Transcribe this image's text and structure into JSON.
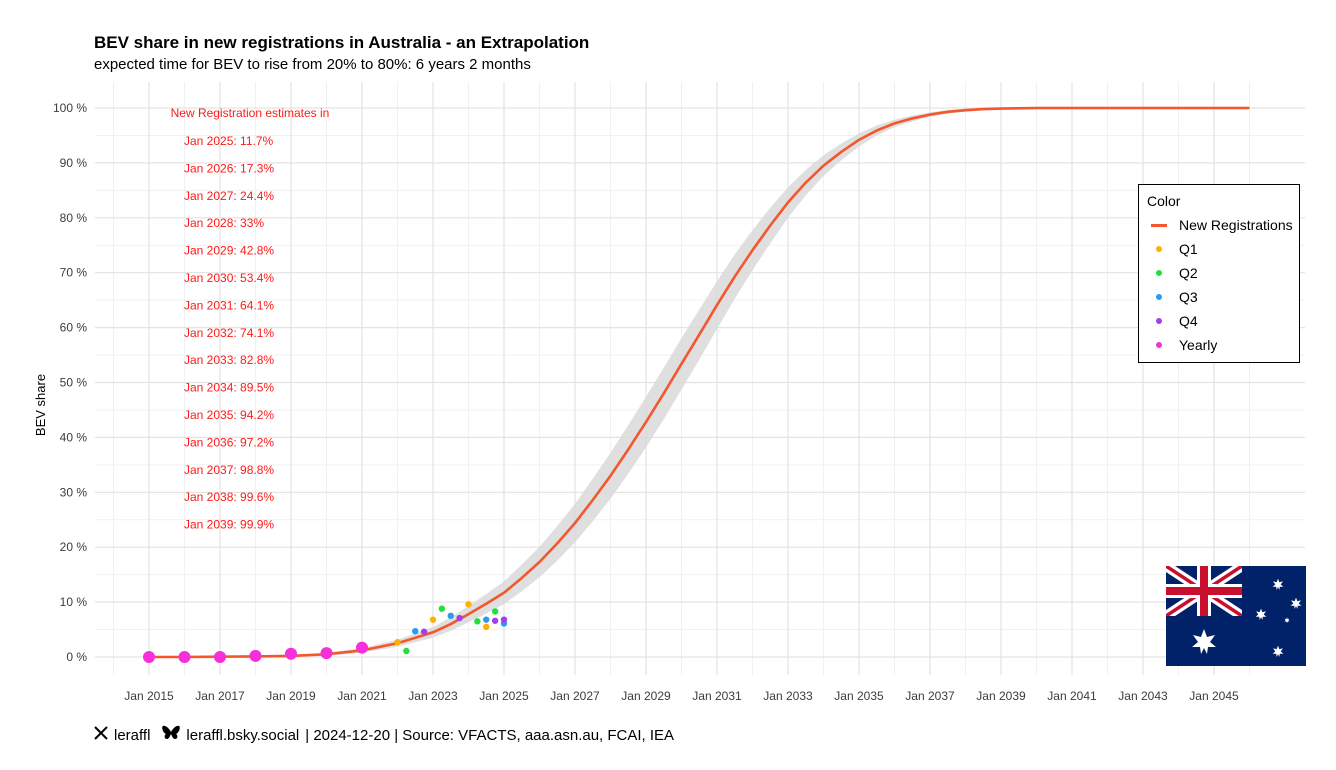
{
  "header": {
    "title": "BEV share in new registrations in Australia - an Extrapolation",
    "subtitle": "expected time for BEV to rise from 20% to 80%: 6 years 2 months"
  },
  "legend": {
    "title": "Color",
    "items": [
      {
        "label": "New Registrations",
        "color": "#F4562D",
        "kind": "line"
      },
      {
        "label": "Q1",
        "color": "#FFB000",
        "kind": "dot"
      },
      {
        "label": "Q2",
        "color": "#22E03A",
        "kind": "dot"
      },
      {
        "label": "Q3",
        "color": "#2B9AF2",
        "kind": "dot"
      },
      {
        "label": "Q4",
        "color": "#A33FEA",
        "kind": "dot"
      },
      {
        "label": "Yearly",
        "color": "#F52FD9",
        "kind": "dot"
      }
    ]
  },
  "annotation": {
    "heading": "New Registration estimates in",
    "color": "#FF1A1A",
    "lines": [
      "Jan 2025: 11.7%",
      "Jan 2026: 17.3%",
      "Jan 2027: 24.4%",
      "Jan 2028: 33%",
      "Jan 2029: 42.8%",
      "Jan 2030: 53.4%",
      "Jan 2031: 64.1%",
      "Jan 2032: 74.1%",
      "Jan 2033: 82.8%",
      "Jan 2034: 89.5%",
      "Jan 2035: 94.2%",
      "Jan 2036: 97.2%",
      "Jan 2037: 98.8%",
      "Jan 2038: 99.6%",
      "Jan 2039: 99.9%"
    ]
  },
  "footer": {
    "x_handle": "leraffl",
    "bsky_handle": "leraffl.bsky.social",
    "rest": "| 2024-12-20 | Source: VFACTS, aaa.asn.au, FCAI, IEA"
  },
  "chart_data": {
    "type": "line",
    "title": "BEV share in new registrations in Australia - an Extrapolation",
    "subtitle": "expected time for BEV to rise from 20% to 80%: 6 years 2 months",
    "xlabel": "",
    "ylabel": "BEV share",
    "xlim": [
      2014.65,
      2047.0
    ],
    "ylim": [
      -0.03,
      1.02
    ],
    "x_ticks": [
      2015,
      2017,
      2019,
      2021,
      2023,
      2025,
      2027,
      2029,
      2031,
      2033,
      2035,
      2037,
      2039,
      2041,
      2043,
      2045
    ],
    "x_tick_labels": [
      "Jan 2015",
      "Jan 2017",
      "Jan 2019",
      "Jan 2021",
      "Jan 2023",
      "Jan 2025",
      "Jan 2027",
      "Jan 2029",
      "Jan 2031",
      "Jan 2033",
      "Jan 2035",
      "Jan 2037",
      "Jan 2039",
      "Jan 2041",
      "Jan 2043",
      "Jan 2045"
    ],
    "y_ticks": [
      0,
      0.1,
      0.2,
      0.3,
      0.4,
      0.5,
      0.6,
      0.7,
      0.8,
      0.9,
      1.0
    ],
    "y_tick_labels": [
      "0 %",
      "10 %",
      "20 %",
      "30 %",
      "40 %",
      "50 %",
      "60 %",
      "70 %",
      "80 %",
      "90 %",
      "100 %"
    ],
    "grid": true,
    "legend_position": "right",
    "series": [
      {
        "name": "New Registrations",
        "kind": "line",
        "color": "#F4562D",
        "x": [
          2015.0,
          2016.0,
          2017.0,
          2018.0,
          2019.0,
          2020.0,
          2021.0,
          2022.0,
          2023.0,
          2023.5,
          2024.0,
          2024.5,
          2025.0,
          2025.5,
          2026.0,
          2026.5,
          2027.0,
          2027.5,
          2028.0,
          2028.5,
          2029.0,
          2029.5,
          2030.0,
          2030.5,
          2031.0,
          2031.5,
          2032.0,
          2032.5,
          2033.0,
          2033.5,
          2034.0,
          2034.5,
          2035.0,
          2035.5,
          2036.0,
          2036.5,
          2037.0,
          2037.5,
          2038.0,
          2038.5,
          2039.0,
          2040.0,
          2041.0,
          2042.0,
          2043.0,
          2044.0,
          2045.0,
          2046.0
        ],
        "y": [
          0.0,
          0.0,
          0.0005,
          0.001,
          0.002,
          0.005,
          0.012,
          0.025,
          0.045,
          0.06,
          0.078,
          0.097,
          0.117,
          0.144,
          0.173,
          0.207,
          0.244,
          0.286,
          0.33,
          0.378,
          0.428,
          0.48,
          0.534,
          0.587,
          0.641,
          0.693,
          0.741,
          0.786,
          0.828,
          0.864,
          0.895,
          0.92,
          0.942,
          0.959,
          0.972,
          0.981,
          0.988,
          0.993,
          0.996,
          0.998,
          0.999,
          1.0,
          1.0,
          1.0,
          1.0,
          1.0,
          1.0,
          1.0
        ]
      },
      {
        "name": "Yearly",
        "kind": "points",
        "color": "#F52FD9",
        "x": [
          2015.0,
          2016.0,
          2017.0,
          2018.0,
          2019.0,
          2020.0,
          2021.0
        ],
        "y": [
          0.0,
          0.0,
          0.0,
          0.002,
          0.006,
          0.007,
          0.017
        ]
      },
      {
        "name": "Q1",
        "kind": "points",
        "color": "#FFB000",
        "x": [
          2022.0,
          2023.0,
          2024.0,
          2024.5
        ],
        "y": [
          0.027,
          0.068,
          0.096,
          0.055
        ]
      },
      {
        "name": "Q2",
        "kind": "points",
        "color": "#22E03A",
        "x": [
          2022.25,
          2023.25,
          2024.25,
          2024.75
        ],
        "y": [
          0.011,
          0.088,
          0.065,
          0.083
        ]
      },
      {
        "name": "Q3",
        "kind": "points",
        "color": "#2B9AF2",
        "x": [
          2022.5,
          2023.5,
          2024.5,
          2025.0
        ],
        "y": [
          0.047,
          0.075,
          0.068,
          0.061
        ]
      },
      {
        "name": "Q4",
        "kind": "points",
        "color": "#A33FEA",
        "x": [
          2022.75,
          2023.75,
          2024.75,
          2025.0
        ],
        "y": [
          0.046,
          0.071,
          0.066,
          0.068
        ]
      }
    ]
  }
}
